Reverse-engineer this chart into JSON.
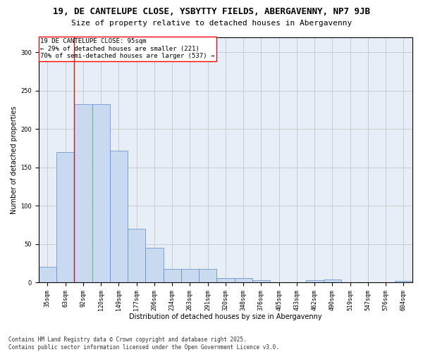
{
  "title_line1": "19, DE CANTELUPE CLOSE, YSBYTTY FIELDS, ABERGAVENNY, NP7 9JB",
  "title_line2": "Size of property relative to detached houses in Abergavenny",
  "xlabel": "Distribution of detached houses by size in Abergavenny",
  "ylabel": "Number of detached properties",
  "categories": [
    "35sqm",
    "63sqm",
    "92sqm",
    "120sqm",
    "149sqm",
    "177sqm",
    "206sqm",
    "234sqm",
    "263sqm",
    "291sqm",
    "320sqm",
    "348sqm",
    "376sqm",
    "405sqm",
    "433sqm",
    "462sqm",
    "490sqm",
    "519sqm",
    "547sqm",
    "576sqm",
    "604sqm"
  ],
  "values": [
    20,
    170,
    232,
    232,
    172,
    70,
    45,
    18,
    18,
    18,
    6,
    6,
    3,
    0,
    0,
    3,
    4,
    0,
    0,
    0,
    2
  ],
  "bar_color": "#c9d9f0",
  "bar_edge_color": "#5a8ac6",
  "red_line_x": 1.5,
  "annotation_box_text": "19 DE CANTELUPE CLOSE: 95sqm\n← 29% of detached houses are smaller (221)\n70% of semi-detached houses are larger (537) →",
  "grid_color": "#cccccc",
  "background_color": "#e8eef8",
  "ylim": [
    0,
    320
  ],
  "yticks": [
    0,
    50,
    100,
    150,
    200,
    250,
    300
  ],
  "footer_line1": "Contains HM Land Registry data © Crown copyright and database right 2025.",
  "footer_line2": "Contains public sector information licensed under the Open Government Licence v3.0.",
  "title_fontsize": 9,
  "subtitle_fontsize": 8,
  "axis_label_fontsize": 7,
  "tick_fontsize": 6,
  "annotation_fontsize": 6.5,
  "footer_fontsize": 5.5
}
